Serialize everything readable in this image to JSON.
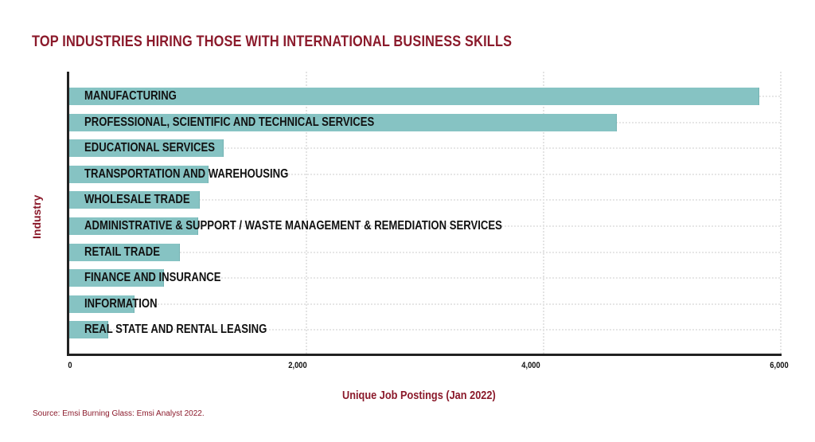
{
  "chart_data": {
    "type": "bar",
    "orientation": "horizontal",
    "title": "TOP INDUSTRIES HIRING THOSE WITH INTERNATIONAL BUSINESS SKILLS",
    "xlabel": "Unique Job Postings (Jan 2022)",
    "ylabel": "Industry",
    "xlim": [
      0,
      6000
    ],
    "xticks": [
      "0",
      "2,000",
      "4,000",
      "6,000"
    ],
    "grid": true,
    "bar_color": "#86c3c3",
    "title_color": "#8b1a2b",
    "categories": [
      "MANUFACTURING",
      "PROFESSIONAL, SCIENTIFIC AND TECHNICAL SERVICES",
      "EDUCATIONAL SERVICES",
      "TRANSPORTATION AND WAREHOUSING",
      "WHOLESALE TRADE",
      "ADMINISTRATIVE & SUPPORT / WASTE MANAGEMENT & REMEDIATION SERVICES",
      "RETAIL TRADE",
      "FINANCE AND INSURANCE",
      "INFORMATION",
      "REAL STATE AND RENTAL LEASING"
    ],
    "values": [
      5820,
      4620,
      1300,
      1175,
      1100,
      1090,
      930,
      800,
      550,
      330
    ],
    "source": "Source: Emsi Burning Glass: Emsi Analyst 2022."
  }
}
